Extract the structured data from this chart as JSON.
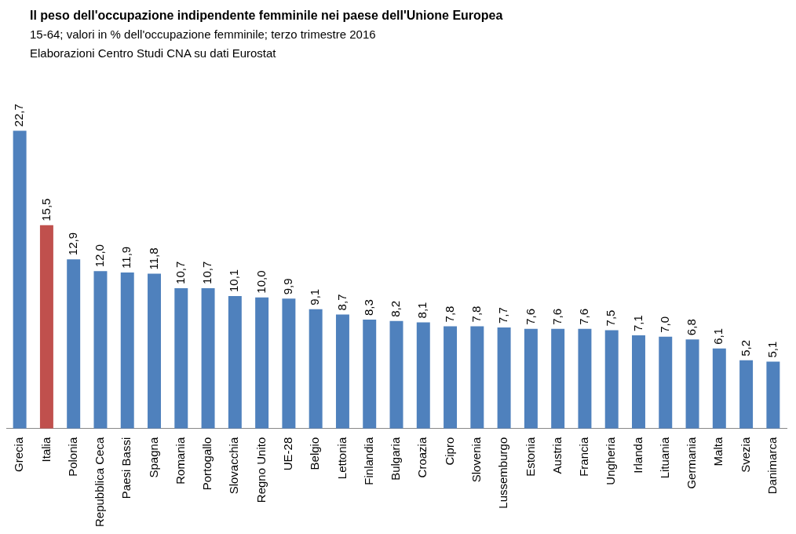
{
  "chart_data": {
    "type": "bar",
    "title": "Il peso dell'occupazione indipendente femminile nei paese dell'Unione Europea",
    "subtitle": "15-64; valori in % dell'occupazione femminile; terzo trimestre 2016",
    "annotations": [
      "Elaborazioni Centro Studi CNA su dati Eurostat"
    ],
    "categories": [
      "Grecia",
      "Italia",
      "Polonia",
      "Repubblica Ceca",
      "Paesi Bassi",
      "Spagna",
      "Romania",
      "Portogallo",
      "Slovacchia",
      "Regno Unito",
      "UE-28",
      "Belgio",
      "Lettonia",
      "Finlandia",
      "Bulgaria",
      "Croazia",
      "Cipro",
      "Slovenia",
      "Lussemburgo",
      "Estonia",
      "Austria",
      "Francia",
      "Ungheria",
      "Irlanda",
      "Lituania",
      "Germania",
      "Malta",
      "Svezia",
      "Danimarca"
    ],
    "values": [
      22.7,
      15.5,
      12.9,
      12.0,
      11.9,
      11.8,
      10.7,
      10.7,
      10.1,
      10.0,
      9.9,
      9.1,
      8.7,
      8.3,
      8.2,
      8.1,
      7.8,
      7.8,
      7.7,
      7.6,
      7.6,
      7.6,
      7.5,
      7.1,
      7.0,
      6.8,
      6.1,
      5.2,
      5.1
    ],
    "colors": [
      "#4f81bd",
      "#c0504d",
      "#4f81bd",
      "#4f81bd",
      "#4f81bd",
      "#4f81bd",
      "#4f81bd",
      "#4f81bd",
      "#4f81bd",
      "#4f81bd",
      "#4f81bd",
      "#4f81bd",
      "#4f81bd",
      "#4f81bd",
      "#4f81bd",
      "#4f81bd",
      "#4f81bd",
      "#4f81bd",
      "#4f81bd",
      "#4f81bd",
      "#4f81bd",
      "#4f81bd",
      "#4f81bd",
      "#4f81bd",
      "#4f81bd",
      "#4f81bd",
      "#4f81bd",
      "#4f81bd",
      "#4f81bd"
    ],
    "value_labels": [
      "22,7",
      "15,5",
      "12,9",
      "12,0",
      "11,9",
      "11,8",
      "10,7",
      "10,7",
      "10,1",
      "10,0",
      "9,9",
      "9,1",
      "8,7",
      "8,3",
      "8,2",
      "8,1",
      "7,8",
      "7,8",
      "7,7",
      "7,6",
      "7,6",
      "7,6",
      "7,5",
      "7,1",
      "7,0",
      "6,8",
      "6,1",
      "5,2",
      "5,1"
    ],
    "grid": false,
    "legend": false
  }
}
